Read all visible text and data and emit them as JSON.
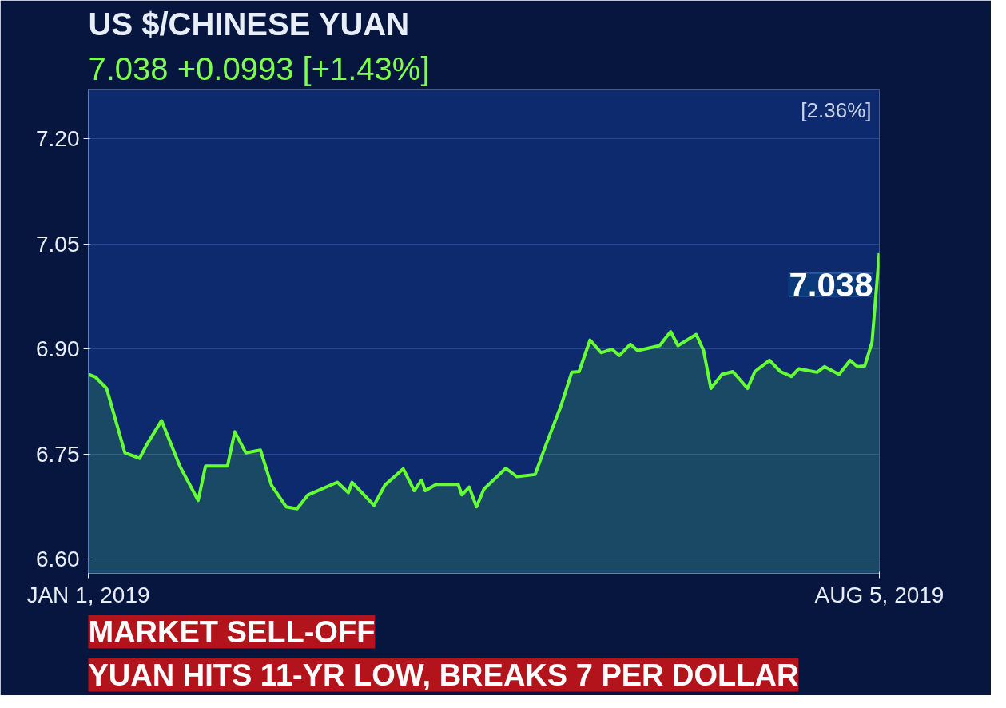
{
  "chart_data": {
    "type": "area",
    "title": "US $/CHINESE YUAN",
    "subtitle": "7.038 +0.0993 [+1.43%]",
    "x": [
      "2019-01-01",
      "2019-01-03",
      "2019-01-06",
      "2019-01-11",
      "2019-01-15",
      "2019-01-17",
      "2019-01-21",
      "2019-01-26",
      "2019-01-31",
      "2019-02-02",
      "2019-02-08",
      "2019-02-10",
      "2019-02-13",
      "2019-02-17",
      "2019-02-20",
      "2019-02-24",
      "2019-02-27",
      "2019-03-02",
      "2019-03-10",
      "2019-03-13",
      "2019-03-14",
      "2019-03-20",
      "2019-03-23",
      "2019-03-28",
      "2019-03-31",
      "2019-04-02",
      "2019-04-03",
      "2019-04-06",
      "2019-04-12",
      "2019-04-13",
      "2019-04-15",
      "2019-04-17",
      "2019-04-19",
      "2019-04-22",
      "2019-04-25",
      "2019-04-28",
      "2019-05-03",
      "2019-05-06",
      "2019-05-10",
      "2019-05-13",
      "2019-05-15",
      "2019-05-18",
      "2019-05-21",
      "2019-05-24",
      "2019-05-26",
      "2019-05-29",
      "2019-05-31",
      "2019-06-06",
      "2019-06-09",
      "2019-06-11",
      "2019-06-16",
      "2019-06-18",
      "2019-06-20",
      "2019-06-23",
      "2019-06-26",
      "2019-06-30",
      "2019-07-02",
      "2019-07-06",
      "2019-07-09",
      "2019-07-12",
      "2019-07-14",
      "2019-07-19",
      "2019-07-21",
      "2019-07-25",
      "2019-07-28",
      "2019-07-30",
      "2019-08-01",
      "2019-08-03",
      "2019-08-05"
    ],
    "series": [
      {
        "color": "#66ff33",
        "values": [
          6.864,
          6.86,
          6.844,
          6.752,
          6.744,
          6.764,
          6.798,
          6.733,
          6.684,
          6.733,
          6.733,
          6.782,
          6.752,
          6.756,
          6.706,
          6.675,
          6.672,
          6.692,
          6.71,
          6.695,
          6.71,
          6.677,
          6.706,
          6.729,
          6.698,
          6.713,
          6.698,
          6.707,
          6.707,
          6.692,
          6.703,
          6.675,
          6.7,
          6.715,
          6.73,
          6.718,
          6.721,
          6.764,
          6.818,
          6.867,
          6.868,
          6.913,
          6.895,
          6.9,
          6.891,
          6.907,
          6.898,
          6.905,
          6.925,
          6.905,
          6.921,
          6.898,
          6.844,
          6.864,
          6.868,
          6.844,
          6.868,
          6.884,
          6.868,
          6.861,
          6.872,
          6.867,
          6.875,
          6.864,
          6.884,
          6.875,
          6.876,
          6.91,
          7.038
        ]
      }
    ],
    "xlim": [
      "2019-01-01",
      "2019-08-05"
    ],
    "xticks": [
      {
        "value": "2019-01-01",
        "label": "JAN 1, 2019"
      },
      {
        "value": "2019-08-05",
        "label": "AUG 5, 2019"
      }
    ],
    "ylim": [
      6.58,
      7.27
    ],
    "yticks": [
      {
        "value": 6.6,
        "label": "6.60"
      },
      {
        "value": 6.75,
        "label": "6.75"
      },
      {
        "value": 6.9,
        "label": "6.90"
      },
      {
        "value": 7.05,
        "label": "7.05"
      },
      {
        "value": 7.2,
        "label": "7.20"
      }
    ],
    "grid": "y",
    "annotations": [
      "[2.36%]",
      {
        "text": "7.038",
        "x": "2019-08-05",
        "y": 7.038
      },
      "MARKET SELL-OFF",
      "YUAN HITS 11-YR LOW, BREAKS 7 PER DOLLAR"
    ]
  }
}
